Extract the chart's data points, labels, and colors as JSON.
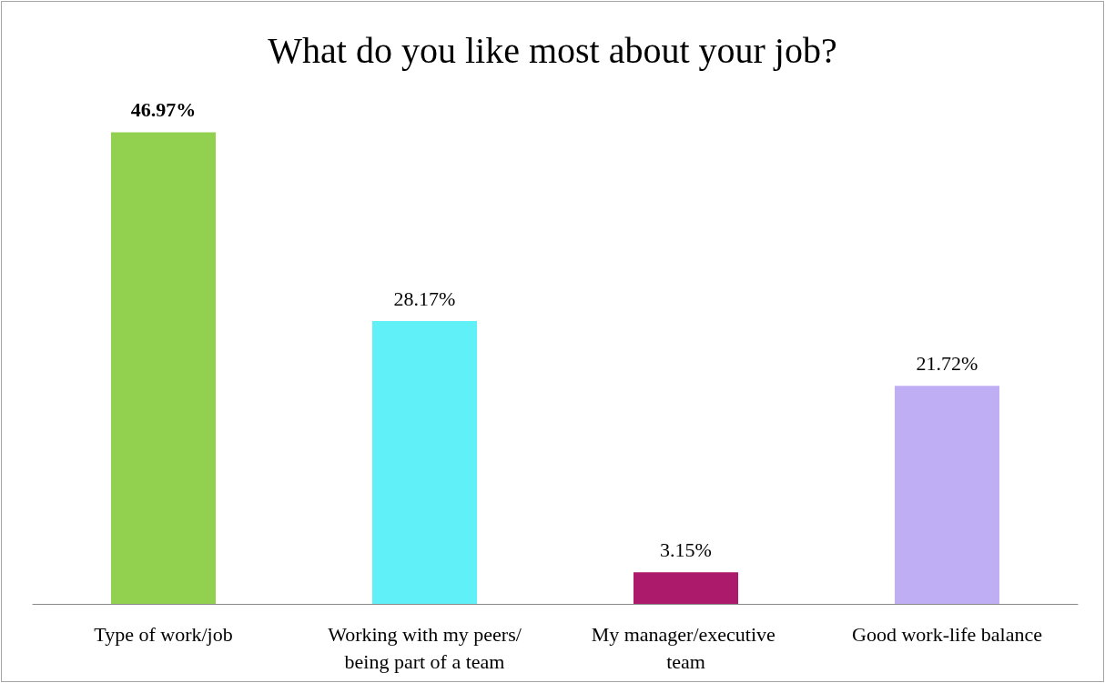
{
  "chart_data": {
    "type": "bar",
    "title": "What do you like most about your job?",
    "categories": [
      "Type of work/job",
      "Working with my peers/being part of a team",
      "My manager/executive team",
      "Good work-life balance"
    ],
    "values": [
      46.97,
      28.17,
      3.15,
      21.72
    ],
    "colors": [
      "#92d050",
      "#5ff0f8",
      "#ab1a6b",
      "#bfaef3"
    ],
    "value_labels": [
      "46.97%",
      "28.17%",
      "3.15%",
      "21.72%"
    ]
  }
}
